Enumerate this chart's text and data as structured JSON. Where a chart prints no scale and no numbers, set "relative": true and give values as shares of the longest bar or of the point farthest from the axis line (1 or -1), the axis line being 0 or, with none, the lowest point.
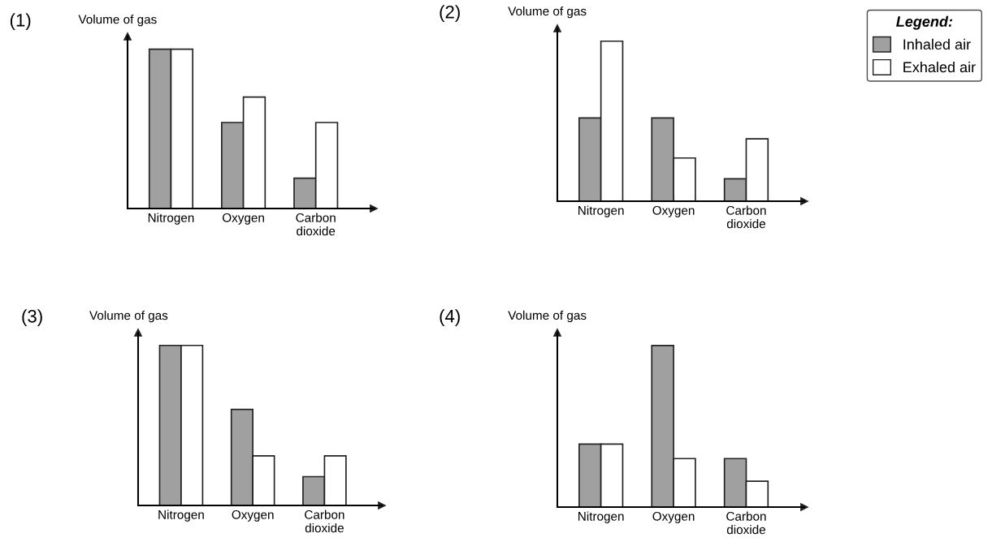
{
  "chart_data": [
    {
      "type": "bar",
      "title": "(1)",
      "ylabel": "Volume of gas",
      "relative": true,
      "grid": false,
      "categories": [
        "Nitrogen",
        "Oxygen",
        "Carbon\ndioxide"
      ],
      "series": [
        {
          "color": "#a0a0a0",
          "values": [
            1,
            0.54,
            0.19
          ]
        },
        {
          "color": "#ffffff",
          "values": [
            1,
            0.7,
            0.54
          ]
        }
      ]
    },
    {
      "type": "bar",
      "title": "(2)",
      "ylabel": "Volume of gas",
      "relative": true,
      "grid": false,
      "legend": "top right",
      "legend_title": "Legend:",
      "categories": [
        "Nitrogen",
        "Oxygen",
        "Carbon\ndioxide"
      ],
      "series": [
        {
          "name": "Inhaled air",
          "color": "#a0a0a0",
          "values": [
            0.52,
            0.52,
            0.14
          ]
        },
        {
          "name": "Exhaled air",
          "color": "#ffffff",
          "values": [
            1,
            0.27,
            0.39
          ]
        }
      ]
    },
    {
      "type": "bar",
      "title": "(3)",
      "ylabel": "Volume of gas",
      "relative": true,
      "grid": false,
      "categories": [
        "Nitrogen",
        "Oxygen",
        "Carbon\ndioxide"
      ],
      "series": [
        {
          "color": "#a0a0a0",
          "values": [
            1,
            0.6,
            0.18
          ]
        },
        {
          "color": "#ffffff",
          "values": [
            1,
            0.31,
            0.31
          ]
        }
      ]
    },
    {
      "type": "bar",
      "title": "(4)",
      "ylabel": "Volume of gas",
      "relative": true,
      "grid": false,
      "categories": [
        "Nitrogen",
        "Oxygen",
        "Carbon\ndioxide"
      ],
      "series": [
        {
          "color": "#a0a0a0",
          "values": [
            0.39,
            1,
            0.3
          ]
        },
        {
          "color": "#ffffff",
          "values": [
            0.39,
            0.3,
            0.16
          ]
        }
      ]
    }
  ]
}
